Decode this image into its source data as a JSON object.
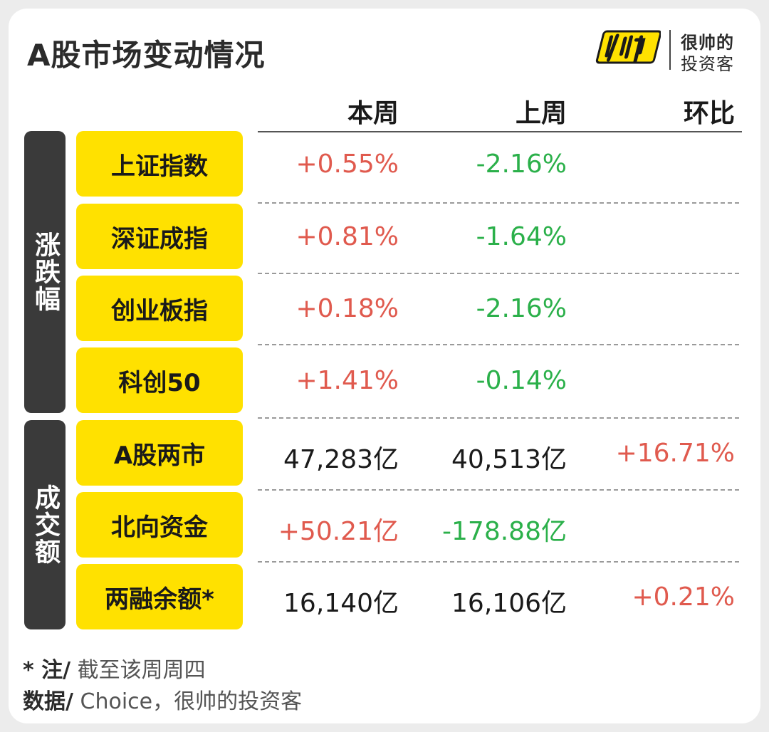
{
  "title": "A股市场变动情况",
  "logo": {
    "mark": "帅",
    "line1": "很帅的",
    "line2": "投资客"
  },
  "columns": {
    "this_week": "本周",
    "last_week": "上周",
    "change": "环比"
  },
  "groups": {
    "change_pct": "涨跌幅",
    "turnover": "成交额"
  },
  "rows": [
    {
      "label": "上证指数",
      "this_week": "+0.55%",
      "last_week": "-2.16%",
      "change": ""
    },
    {
      "label": "深证成指",
      "this_week": "+0.81%",
      "last_week": "-1.64%",
      "change": ""
    },
    {
      "label": "创业板指",
      "this_week": "+0.18%",
      "last_week": "-2.16%",
      "change": ""
    },
    {
      "label": "科创50",
      "this_week": "+1.41%",
      "last_week": "-0.14%",
      "change": ""
    },
    {
      "label": "A股两市",
      "this_week": "47,283亿",
      "last_week": "40,513亿",
      "change": "+16.71%"
    },
    {
      "label": "北向资金",
      "this_week": "+50.21亿",
      "last_week": "-178.88亿",
      "change": ""
    },
    {
      "label": "两融余额*",
      "this_week": "16,140亿",
      "last_week": "16,106亿",
      "change": "+0.21%"
    }
  ],
  "notes": {
    "note_label": "* 注/",
    "note_text": " 截至该周周四",
    "source_label": "数据/",
    "source_text": " Choice，很帅的投资客"
  },
  "colors": {
    "up": "#e05a4e",
    "down": "#2bb04a",
    "label_bg": "#ffe100",
    "group_bg": "#3a3a3a"
  }
}
